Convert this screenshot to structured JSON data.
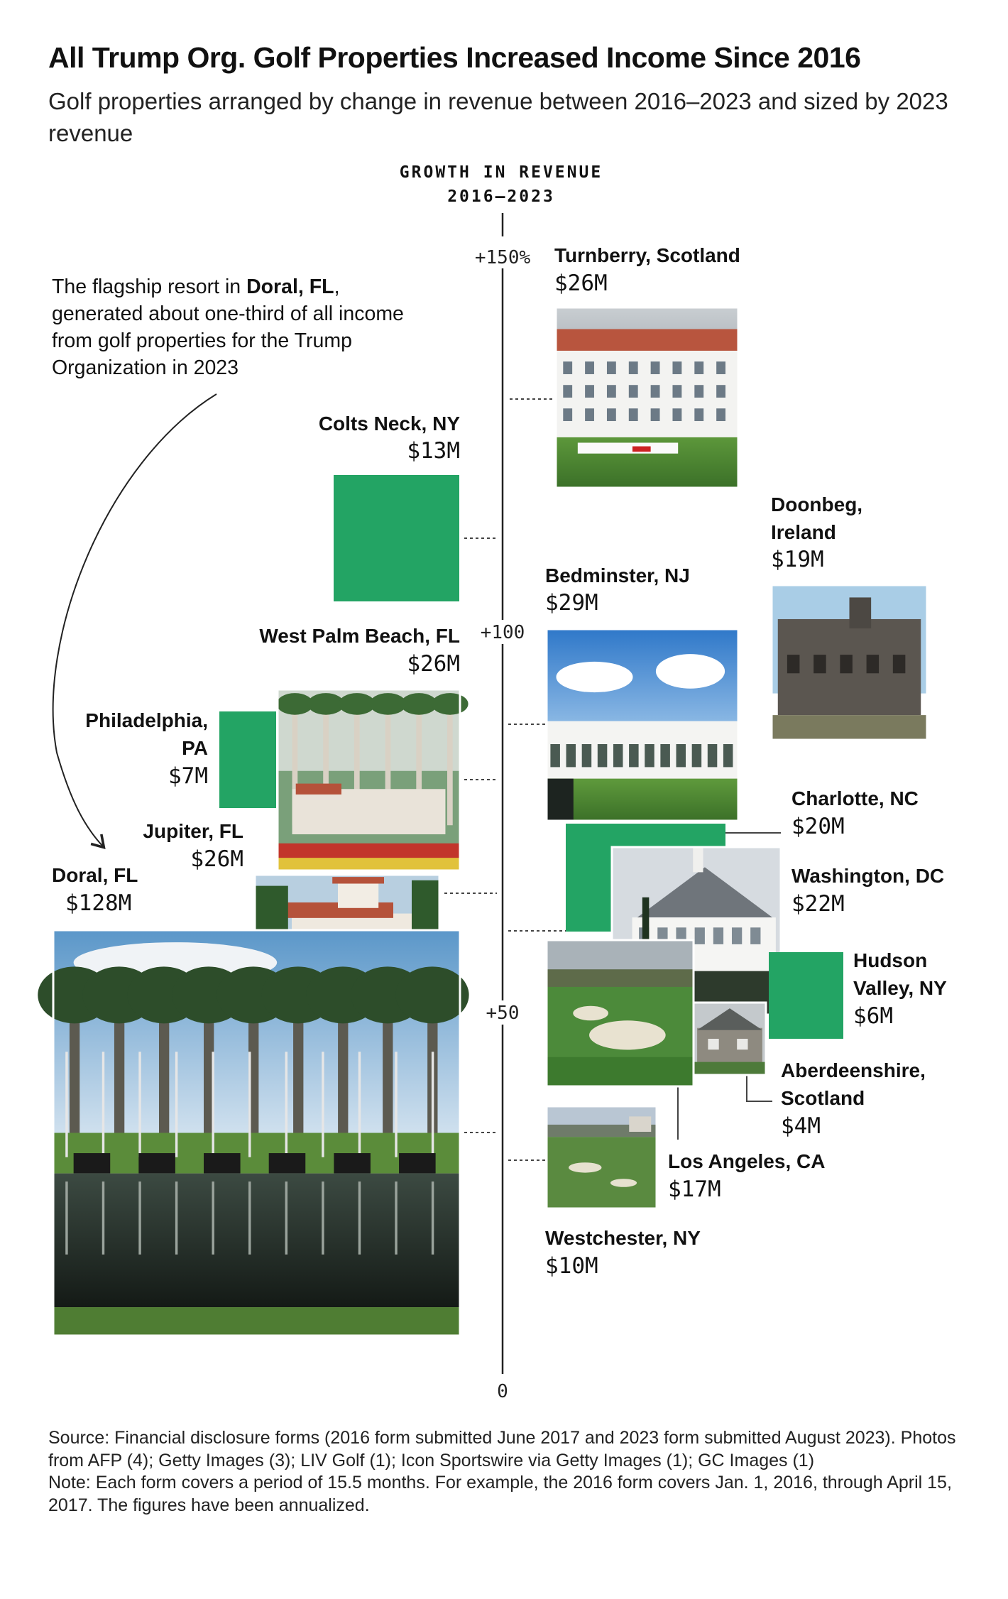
{
  "header": {
    "title": "All Trump Org. Golf Properties Increased Income Since 2016",
    "subtitle": "Golf properties arranged by change in revenue between 2016–2023 and sized by 2023 revenue"
  },
  "axis": {
    "title_line1": "GROWTH IN REVENUE",
    "title_line2": "2016–2023"
  },
  "annotation": {
    "pre": "The flagship resort in ",
    "bold": "Doral, FL",
    "post": ", generated about one-third of all income from golf properties for the Trump Organization in 2023"
  },
  "colors": {
    "green": "#23a464",
    "axis": "#222222",
    "leader": "#555555"
  },
  "chart_data": {
    "type": "scatter",
    "x_label": "GROWTH IN REVENUE 2016–2023",
    "y_ticks": [
      {
        "value": 150,
        "label": "+150%"
      },
      {
        "value": 100,
        "label": "+100"
      },
      {
        "value": 50,
        "label": "+50"
      },
      {
        "value": 0,
        "label": "0"
      }
    ],
    "ylim": [
      0,
      150
    ],
    "size_encoding": "2023 revenue",
    "points": [
      {
        "name": "Turnberry, Scotland",
        "revenue": "$26M",
        "revenue_m": 26,
        "growth": 135,
        "side": "right",
        "style": "photo"
      },
      {
        "name": "Colts Neck, NY",
        "revenue": "$13M",
        "revenue_m": 13,
        "growth": 126,
        "side": "left",
        "style": "square"
      },
      {
        "name": "Doonbeg, Ireland",
        "revenue": "$19M",
        "revenue_m": 19,
        "growth": 109,
        "side": "right",
        "style": "photo"
      },
      {
        "name": "Bedminster, NJ",
        "revenue": "$29M",
        "revenue_m": 29,
        "growth": 91,
        "side": "right",
        "style": "photo"
      },
      {
        "name": "West Palm Beach, FL",
        "revenue": "$26M",
        "revenue_m": 26,
        "growth": 86,
        "side": "left",
        "style": "photo"
      },
      {
        "name": "Philadelphia, PA",
        "revenue": "$7M",
        "revenue_m": 7,
        "growth": 86,
        "side": "left",
        "style": "square"
      },
      {
        "name": "Charlotte, NC",
        "revenue": "$20M",
        "revenue_m": 20,
        "growth": 64,
        "side": "right",
        "style": "square"
      },
      {
        "name": "Jupiter, FL",
        "revenue": "$26M",
        "revenue_m": 26,
        "growth": 70,
        "side": "left",
        "style": "photo"
      },
      {
        "name": "Washington, DC",
        "revenue": "$22M",
        "revenue_m": 22,
        "growth": 63,
        "side": "right",
        "style": "photo"
      },
      {
        "name": "Hudson Valley, NY",
        "revenue": "$6M",
        "revenue_m": 6,
        "growth": 51,
        "side": "right",
        "style": "square"
      },
      {
        "name": "Los Angeles, CA",
        "revenue": "$17M",
        "revenue_m": 17,
        "growth": 51,
        "side": "right",
        "style": "photo"
      },
      {
        "name": "Aberdeenshire, Scotland",
        "revenue": "$4M",
        "revenue_m": 4,
        "growth": 49,
        "side": "right",
        "style": "photo"
      },
      {
        "name": "Doral, FL",
        "revenue": "$128M",
        "revenue_m": 128,
        "growth": 34,
        "side": "left",
        "style": "photo"
      },
      {
        "name": "Westchester, NY",
        "revenue": "$10M",
        "revenue_m": 10,
        "growth": 30,
        "side": "right",
        "style": "photo"
      }
    ]
  },
  "footer": {
    "source": "Source: Financial disclosure forms (2016 form submitted June 2017 and 2023 form submitted August 2023). Photos from AFP (4); Getty Images (3); LIV Golf (1); Icon Sportswire via Getty Images (1); GC Images (1)",
    "note": "Note: Each form covers a period of 15.5 months. For example, the 2016 form covers Jan. 1, 2016, through April 15, 2017. The figures have been annualized."
  }
}
